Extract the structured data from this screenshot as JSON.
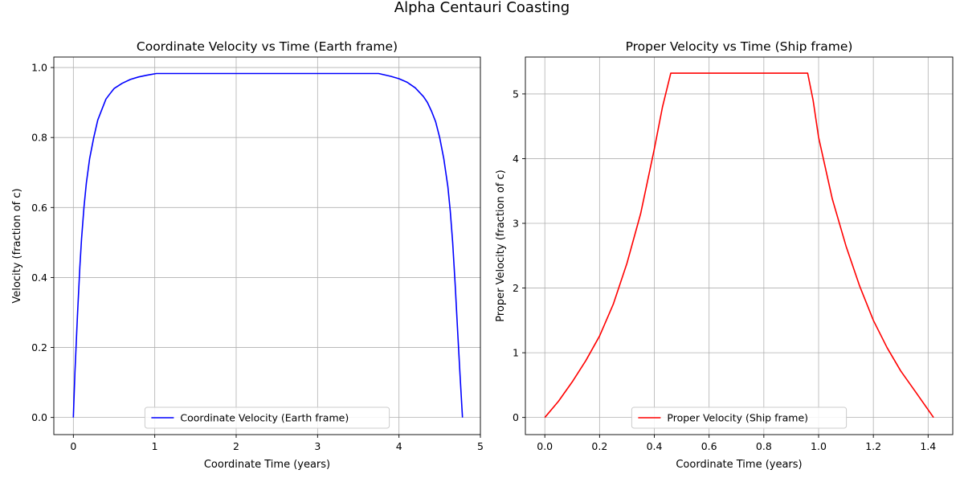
{
  "figure": {
    "suptitle": "Alpha Centauri Coasting"
  },
  "chart_data": [
    {
      "type": "line",
      "title": "Coordinate Velocity vs Time (Earth frame)",
      "xlabel": "Coordinate Time (years)",
      "ylabel": "Velocity (fraction of c)",
      "xlim": [
        -0.24,
        5.0
      ],
      "ylim": [
        -0.049,
        1.03
      ],
      "xticks": [
        0,
        1,
        2,
        3,
        4,
        5
      ],
      "xtick_labels": [
        "0",
        "1",
        "2",
        "3",
        "4",
        "5"
      ],
      "yticks": [
        0.0,
        0.2,
        0.4,
        0.6,
        0.8,
        1.0
      ],
      "ytick_labels": [
        "0.0",
        "0.2",
        "0.4",
        "0.6",
        "0.8",
        "1.0"
      ],
      "grid": true,
      "legend": "lower center",
      "series": [
        {
          "name": "Coordinate Velocity (Earth frame)",
          "color": "#0000ff",
          "x": [
            0,
            0.02,
            0.05,
            0.08,
            0.1,
            0.13,
            0.16,
            0.2,
            0.25,
            0.3,
            0.35,
            0.4,
            0.45,
            0.5,
            0.6,
            0.7,
            0.8,
            0.9,
            1.02,
            1.5,
            2.0,
            2.5,
            3.0,
            3.5,
            3.75,
            3.9,
            4.0,
            4.1,
            4.2,
            4.3,
            4.35,
            4.4,
            4.45,
            4.5,
            4.55,
            4.6,
            4.63,
            4.66,
            4.69,
            4.72,
            4.75,
            4.78
          ],
          "y": [
            0,
            0.13,
            0.29,
            0.43,
            0.51,
            0.6,
            0.67,
            0.74,
            0.8,
            0.85,
            0.88,
            0.91,
            0.925,
            0.94,
            0.955,
            0.966,
            0.973,
            0.978,
            0.983,
            0.983,
            0.983,
            0.983,
            0.983,
            0.983,
            0.983,
            0.975,
            0.968,
            0.958,
            0.942,
            0.917,
            0.9,
            0.875,
            0.845,
            0.8,
            0.74,
            0.66,
            0.59,
            0.5,
            0.38,
            0.25,
            0.12,
            0
          ]
        }
      ]
    },
    {
      "type": "line",
      "title": "Proper Velocity vs Time (Ship frame)",
      "xlabel": "Coordinate Time (years)",
      "ylabel": "Proper Velocity (fraction of c)",
      "xlim": [
        -0.071,
        1.49
      ],
      "ylim": [
        -0.265,
        5.57
      ],
      "xticks": [
        0,
        0.2,
        0.4,
        0.6,
        0.8,
        1.0,
        1.2,
        1.4
      ],
      "xtick_labels": [
        "0.0",
        "0.2",
        "0.4",
        "0.6",
        "0.8",
        "1.0",
        "1.2",
        "1.4"
      ],
      "yticks": [
        0,
        1,
        2,
        3,
        4,
        5
      ],
      "ytick_labels": [
        "0",
        "1",
        "2",
        "3",
        "4",
        "5"
      ],
      "grid": true,
      "legend": "lower center",
      "series": [
        {
          "name": "Proper Velocity (Ship frame)",
          "color": "#ff0000",
          "x": [
            0,
            0.05,
            0.1,
            0.15,
            0.2,
            0.25,
            0.3,
            0.35,
            0.4,
            0.43,
            0.46,
            0.6,
            0.8,
            0.96,
            0.98,
            1.0,
            1.05,
            1.1,
            1.15,
            1.2,
            1.25,
            1.3,
            1.35,
            1.42
          ],
          "y": [
            0,
            0.25,
            0.55,
            0.88,
            1.26,
            1.75,
            2.38,
            3.15,
            4.15,
            4.8,
            5.32,
            5.32,
            5.32,
            5.32,
            4.9,
            4.33,
            3.38,
            2.65,
            2.03,
            1.5,
            1.08,
            0.72,
            0.42,
            0
          ]
        }
      ]
    }
  ]
}
